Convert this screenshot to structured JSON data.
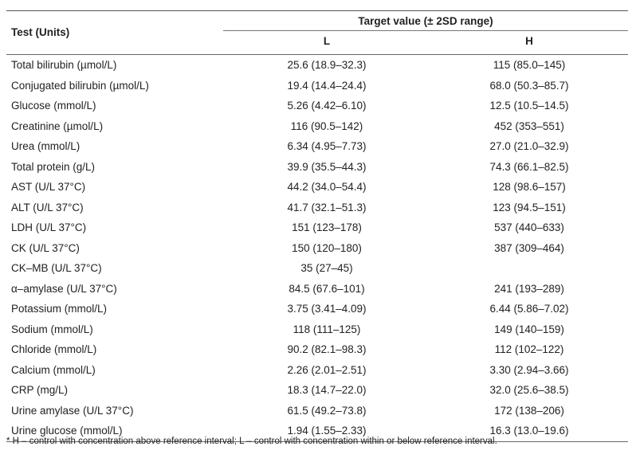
{
  "header": {
    "test_units": "Test (Units)",
    "target_value": "Target value (± 2SD range)",
    "col_l": "L",
    "col_h": "H"
  },
  "rows": [
    {
      "test": "Total bilirubin (µmol/L)",
      "l": "25.6 (18.9–32.3)",
      "h": "115 (85.0–145)"
    },
    {
      "test": "Conjugated bilirubin (µmol/L)",
      "l": "19.4 (14.4–24.4)",
      "h": "68.0 (50.3–85.7)"
    },
    {
      "test": "Glucose (mmol/L)",
      "l": "5.26 (4.42–6.10)",
      "h": "12.5 (10.5–14.5)"
    },
    {
      "test": "Creatinine (µmol/L)",
      "l": "116 (90.5–142)",
      "h": "452 (353–551)"
    },
    {
      "test": "Urea (mmol/L)",
      "l": "6.34 (4.95–7.73)",
      "h": "27.0 (21.0–32.9)"
    },
    {
      "test": "Total protein (g/L)",
      "l": "39.9 (35.5–44.3)",
      "h": "74.3 (66.1–82.5)"
    },
    {
      "test": "AST (U/L 37°C)",
      "l": "44.2 (34.0–54.4)",
      "h": "128 (98.6–157)"
    },
    {
      "test": "ALT (U/L 37°C)",
      "l": "41.7 (32.1–51.3)",
      "h": "123 (94.5–151)"
    },
    {
      "test": "LDH (U/L 37°C)",
      "l": "151 (123–178)",
      "h": "537 (440–633)"
    },
    {
      "test": "CK (U/L 37°C)",
      "l": "150 (120–180)",
      "h": "387 (309–464)"
    },
    {
      "test": "CK–MB (U/L 37°C)",
      "l": "35 (27–45)",
      "h": ""
    },
    {
      "test": "α–amylase (U/L 37°C)",
      "l": "84.5 (67.6–101)",
      "h": "241 (193–289)"
    },
    {
      "test": "Potassium (mmol/L)",
      "l": "3.75 (3.41–4.09)",
      "h": "6.44 (5.86–7.02)"
    },
    {
      "test": "Sodium (mmol/L)",
      "l": "118 (111–125)",
      "h": "149 (140–159)"
    },
    {
      "test": "Chloride (mmol/L)",
      "l": "90.2 (82.1–98.3)",
      "h": "112 (102–122)"
    },
    {
      "test": "Calcium (mmol/L)",
      "l": "2.26 (2.01–2.51)",
      "h": "3.30 (2.94–3.66)"
    },
    {
      "test": "CRP (mg/L)",
      "l": "18.3 (14.7–22.0)",
      "h": "32.0 (25.6–38.5)"
    },
    {
      "test": "Urine amylase (U/L 37°C)",
      "l": "61.5 (49.2–73.8)",
      "h": "172 (138–206)"
    },
    {
      "test": "Urine glucose (mmol/L)",
      "l": "1.94 (1.55–2.33)",
      "h": "16.3 (13.0–19.6)"
    }
  ],
  "footnote": "* H – control with concentration above reference interval; L – control with concentration within or below reference interval."
}
